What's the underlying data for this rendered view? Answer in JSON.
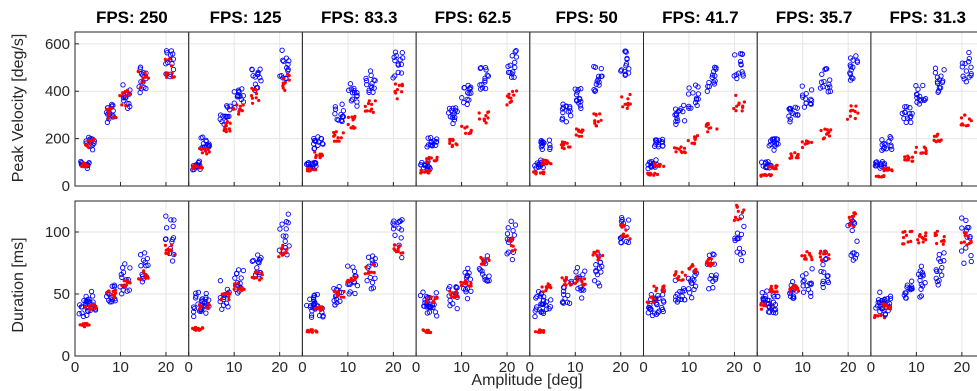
{
  "figure": {
    "xlabel": "Amplitude [deg]",
    "row_ylabels": [
      "Peak Velocity [deg/s]",
      "Duration [ms]"
    ],
    "colors": {
      "model_marker": "#0000ff",
      "measured_marker": "#ff0000",
      "grid": "#e6e6e6",
      "axes": "#262626"
    }
  },
  "chart_data": {
    "type": "scatter",
    "layout": "2 rows x 8 columns small multiples",
    "grid": true,
    "xlabel": "Amplitude [deg]",
    "x_ticks": [
      0,
      10,
      20
    ],
    "rows": [
      {
        "ylabel": "Peak Velocity [deg/s]",
        "ylim": [
          0,
          650
        ],
        "y_ticks": [
          0,
          200,
          400,
          600
        ]
      },
      {
        "ylabel": "Duration [ms]",
        "ylim": [
          0,
          125
        ],
        "y_ticks": [
          0,
          50,
          100
        ]
      }
    ],
    "panels": [
      {
        "title": "FPS: 250",
        "fps": 250
      },
      {
        "title": "FPS: 125",
        "fps": 125
      },
      {
        "title": "FPS: 83.3",
        "fps": 83.3
      },
      {
        "title": "FPS: 62.5",
        "fps": 62.5
      },
      {
        "title": "FPS: 50",
        "fps": 50
      },
      {
        "title": "FPS: 41.7",
        "fps": 41.7
      },
      {
        "title": "FPS: 35.7",
        "fps": 35.7
      },
      {
        "title": "FPS: 31.3",
        "fps": 31.3
      }
    ],
    "series": [
      {
        "marker": "open-circle",
        "color": "#0000ff",
        "peak_velocity": {
          "amplitude_centers": [
            2,
            3.5,
            8,
            11,
            15,
            21
          ],
          "values": [
            90,
            180,
            305,
            380,
            450,
            505
          ]
        },
        "duration": {
          "amplitude_centers": [
            2,
            3.5,
            8,
            11,
            15,
            21
          ],
          "values": [
            42,
            42,
            50,
            60,
            70,
            95
          ]
        }
      },
      {
        "marker": "dot",
        "color": "#ff0000",
        "peak_velocity_by_panel": [
          [
            90,
            180,
            300,
            370,
            440,
            500
          ],
          [
            80,
            150,
            250,
            320,
            380,
            440
          ],
          [
            70,
            130,
            210,
            270,
            330,
            400
          ],
          [
            60,
            110,
            180,
            240,
            290,
            370
          ],
          [
            55,
            100,
            170,
            220,
            280,
            360
          ],
          [
            50,
            90,
            150,
            195,
            250,
            350
          ],
          [
            45,
            80,
            130,
            175,
            220,
            310
          ],
          [
            40,
            70,
            115,
            150,
            200,
            280
          ]
        ],
        "duration_by_panel": [
          [
            25,
            40,
            50,
            58,
            65,
            85
          ],
          [
            22,
            40,
            48,
            56,
            65,
            85
          ],
          [
            20,
            38,
            50,
            60,
            70,
            85
          ],
          [
            20,
            45,
            50,
            60,
            75,
            90
          ],
          [
            20,
            55,
            60,
            60,
            80,
            100
          ],
          [
            45,
            55,
            65,
            70,
            75,
            115
          ],
          [
            40,
            55,
            55,
            80,
            80,
            110
          ],
          [
            32,
            40,
            95,
            95,
            95,
            95
          ]
        ]
      }
    ]
  }
}
